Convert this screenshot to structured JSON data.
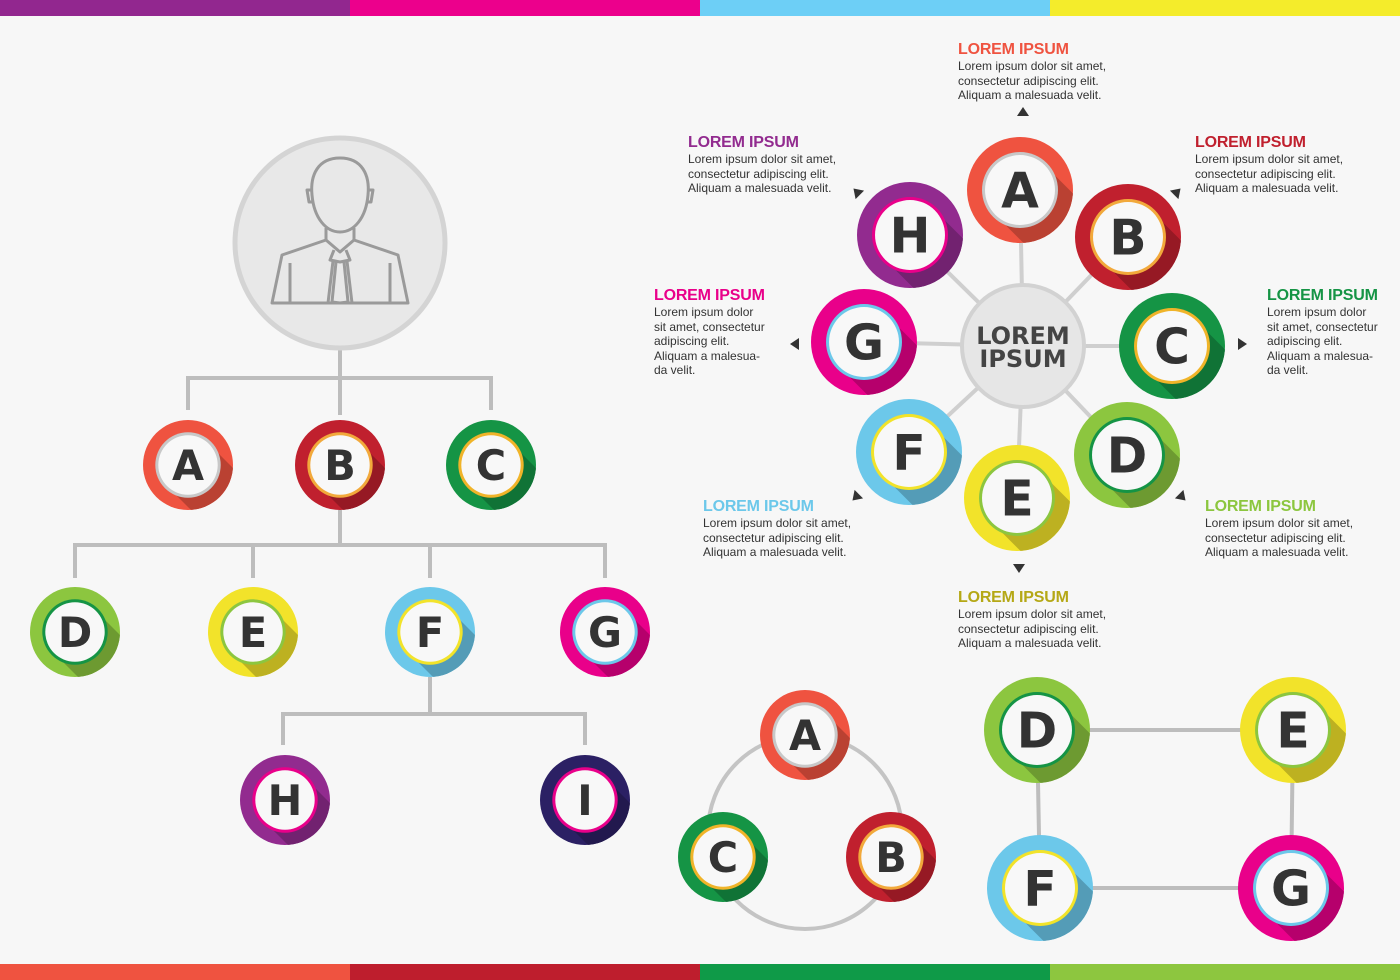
{
  "bars": {
    "top": [
      "#92278f",
      "#ec008c",
      "#6dcff6",
      "#f4ec2b"
    ],
    "bottom": [
      "#ef5340",
      "#be1e2d",
      "#0f9a48",
      "#8dc63f"
    ]
  },
  "nodes": {
    "A": {
      "letter": "A",
      "color": "#ef5340",
      "ring": "#c8c8c8"
    },
    "B": {
      "letter": "B",
      "color": "#c0202e",
      "ring": "#f2a93b"
    },
    "C": {
      "letter": "C",
      "color": "#159445",
      "ring": "#f0b429"
    },
    "D": {
      "letter": "D",
      "color": "#8cc63f",
      "ring": "#159445"
    },
    "E": {
      "letter": "E",
      "color": "#f2e32a",
      "ring": "#8cc63f"
    },
    "F": {
      "letter": "F",
      "color": "#6cc8ea",
      "ring": "#f2e32a"
    },
    "G": {
      "letter": "G",
      "color": "#e9008a",
      "ring": "#6cc8ea"
    },
    "H": {
      "letter": "H",
      "color": "#922b8f",
      "ring": "#e9008a"
    },
    "I": {
      "letter": "I",
      "color": "#2b2064",
      "ring": "#e9008a"
    }
  },
  "center": {
    "line1": "LOREM",
    "line2": "IPSUM"
  },
  "labels": [
    {
      "key": "A",
      "title": "LOREM IPSUM",
      "color": "#ef5340",
      "body": "Lorem ipsum dolor sit amet,\nconsectetur adipiscing elit.\nAliquam a malesuada velit."
    },
    {
      "key": "H",
      "title": "LOREM IPSUM",
      "color": "#922b8f",
      "body": "Lorem ipsum dolor sit amet,\nconsectetur adipiscing elit.\nAliquam a malesuada velit."
    },
    {
      "key": "B",
      "title": "LOREM IPSUM",
      "color": "#c0202e",
      "body": "Lorem ipsum dolor sit amet,\nconsectetur adipiscing elit.\nAliquam a malesuada velit."
    },
    {
      "key": "G",
      "title": "LOREM IPSUM",
      "color": "#e9008a",
      "body": "Lorem ipsum dolor\nsit amet, consectetur\nadipiscing elit.\nAliquam a malesua-\nda velit."
    },
    {
      "key": "C",
      "title": "LOREM IPSUM",
      "color": "#159445",
      "body": "Lorem ipsum dolor\nsit amet, consectetur\nadipiscing elit.\nAliquam a malesua-\nda velit."
    },
    {
      "key": "F",
      "title": "LOREM IPSUM",
      "color": "#6cc8ea",
      "body": "Lorem ipsum dolor sit amet,\nconsectetur adipiscing elit.\nAliquam a malesuada velit."
    },
    {
      "key": "D",
      "title": "LOREM IPSUM",
      "color": "#8cc63f",
      "body": "Lorem ipsum dolor sit amet,\nconsectetur adipiscing elit.\nAliquam a malesuada velit."
    },
    {
      "key": "E",
      "title": "LOREM IPSUM",
      "color": "#b5a816",
      "body": "Lorem ipsum dolor sit amet,\nconsectetur adipiscing elit.\nAliquam a malesuada velit."
    }
  ],
  "icons": {
    "root": "person-icon",
    "pointer": "triangle-pointer-icon"
  }
}
